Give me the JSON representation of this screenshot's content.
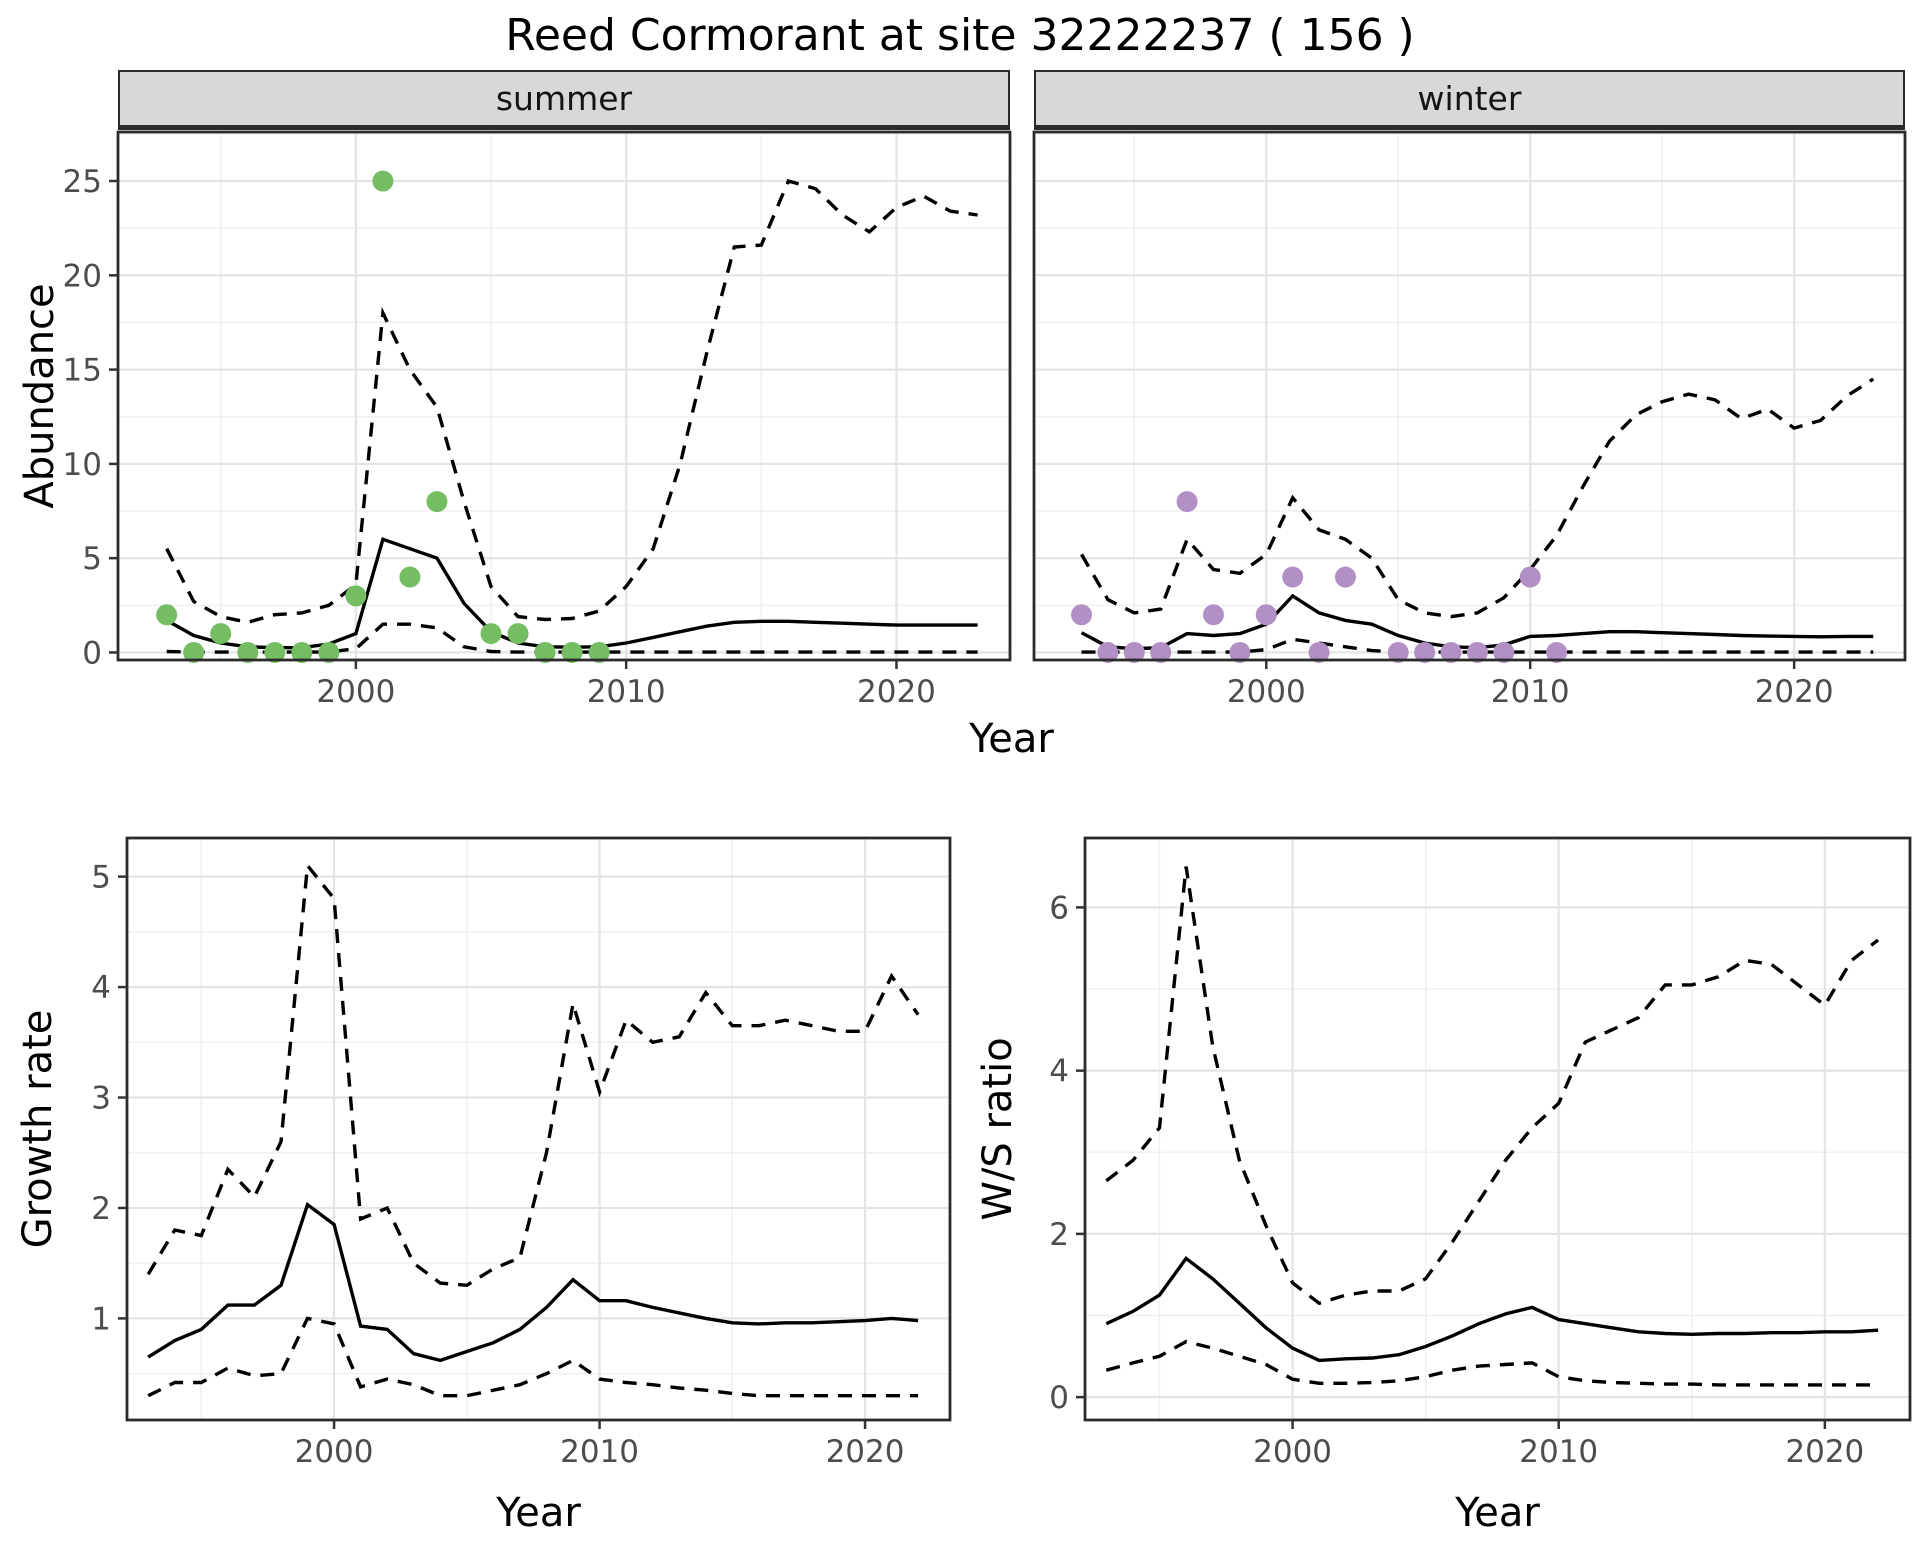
{
  "title": "Reed Cormorant at site 32222237 ( 156 )",
  "colors": {
    "summer_point": "#75bd62",
    "winter_point": "#b290c5",
    "line": "#000000",
    "grid_major": "#e4e4e4",
    "grid_minor": "#f0f0f0",
    "panel_border": "#2b2b2b",
    "strip_bg": "#d8d8d8",
    "tick_text": "#4d4d4d",
    "background": "#ffffff"
  },
  "chart_data": [
    {
      "id": "abundance-summer",
      "type": "line",
      "facet_label": "summer",
      "xlabel": "Year",
      "ylabel": "Abundance",
      "xlim": [
        1991.2,
        2024.2
      ],
      "ylim": [
        -0.4,
        27.6
      ],
      "xticks": [
        2000,
        2010,
        2020
      ],
      "yticks": [
        0,
        5,
        10,
        15,
        20,
        25
      ],
      "grid": true,
      "legend": "none",
      "x": [
        1993,
        1994,
        1995,
        1996,
        1997,
        1998,
        1999,
        2000,
        2001,
        2002,
        2003,
        2004,
        2005,
        2006,
        2007,
        2008,
        2009,
        2010,
        2011,
        2012,
        2013,
        2014,
        2015,
        2016,
        2017,
        2018,
        2019,
        2020,
        2021,
        2022,
        2023
      ],
      "series": [
        {
          "name": "median",
          "style": "solid",
          "values": [
            1.7,
            0.9,
            0.5,
            0.3,
            0.25,
            0.25,
            0.45,
            1.0,
            6.0,
            5.5,
            5.0,
            2.6,
            1.1,
            0.5,
            0.3,
            0.28,
            0.3,
            0.5,
            0.8,
            1.1,
            1.4,
            1.6,
            1.65,
            1.65,
            1.6,
            1.55,
            1.5,
            1.45,
            1.45,
            1.45,
            1.45
          ]
        },
        {
          "name": "ci_upper",
          "style": "dashed",
          "values": [
            5.5,
            2.7,
            1.9,
            1.6,
            2.0,
            2.1,
            2.5,
            3.6,
            18.0,
            15.0,
            13.0,
            8.0,
            3.5,
            1.9,
            1.75,
            1.8,
            2.2,
            3.5,
            5.5,
            10.0,
            16.0,
            21.5,
            21.6,
            25.0,
            24.6,
            23.2,
            22.3,
            23.6,
            24.2,
            23.4,
            23.2
          ]
        },
        {
          "name": "ci_lower",
          "style": "dashed",
          "values": [
            0.05,
            0.02,
            0.02,
            0.02,
            0.02,
            0.02,
            0.02,
            0.2,
            1.5,
            1.5,
            1.3,
            0.3,
            0.05,
            0.02,
            0.02,
            0.02,
            0.02,
            0.02,
            0.02,
            0.02,
            0.02,
            0.02,
            0.02,
            0.02,
            0.02,
            0.02,
            0.02,
            0.02,
            0.02,
            0.02,
            0.02
          ]
        }
      ],
      "points": {
        "name": "observed summer counts",
        "color_key": "summer_point",
        "x": [
          1993,
          1994,
          1995,
          1996,
          1997,
          1998,
          1999,
          2000,
          2001,
          2002,
          2003,
          2005,
          2006,
          2007,
          2008,
          2009
        ],
        "values": [
          2,
          0,
          1,
          0,
          0,
          0,
          0,
          3,
          25,
          4,
          8,
          1,
          1,
          0,
          0,
          0
        ]
      }
    },
    {
      "id": "abundance-winter",
      "type": "line",
      "facet_label": "winter",
      "xlabel": "Year",
      "ylabel": "Abundance",
      "xlim": [
        1991.2,
        2024.2
      ],
      "ylim": [
        -0.4,
        27.6
      ],
      "xticks": [
        2000,
        2010,
        2020
      ],
      "yticks": [
        0,
        5,
        10,
        15,
        20,
        25
      ],
      "grid": true,
      "legend": "none",
      "x": [
        1993,
        1994,
        1995,
        1996,
        1997,
        1998,
        1999,
        2000,
        2001,
        2002,
        2003,
        2004,
        2005,
        2006,
        2007,
        2008,
        2009,
        2010,
        2011,
        2012,
        2013,
        2014,
        2015,
        2016,
        2017,
        2018,
        2019,
        2020,
        2021,
        2022,
        2023
      ],
      "series": [
        {
          "name": "median",
          "style": "solid",
          "values": [
            1.05,
            0.3,
            0.2,
            0.25,
            1.0,
            0.9,
            1.0,
            1.5,
            3.0,
            2.1,
            1.7,
            1.5,
            0.9,
            0.5,
            0.3,
            0.25,
            0.4,
            0.85,
            0.9,
            1.0,
            1.1,
            1.1,
            1.05,
            1.0,
            0.95,
            0.9,
            0.87,
            0.85,
            0.83,
            0.85,
            0.85
          ]
        },
        {
          "name": "ci_upper",
          "style": "dashed",
          "values": [
            5.2,
            2.8,
            2.1,
            2.3,
            6.0,
            4.4,
            4.2,
            5.2,
            8.2,
            6.5,
            6.0,
            5.0,
            2.8,
            2.1,
            1.9,
            2.1,
            2.9,
            4.4,
            6.2,
            8.8,
            11.2,
            12.6,
            13.3,
            13.7,
            13.4,
            12.4,
            12.9,
            11.9,
            12.3,
            13.6,
            14.5
          ]
        },
        {
          "name": "ci_lower",
          "style": "dashed",
          "values": [
            0.02,
            0.02,
            0.02,
            0.02,
            0.02,
            0.02,
            0.02,
            0.15,
            0.7,
            0.5,
            0.3,
            0.1,
            0.02,
            0.02,
            0.02,
            0.02,
            0.02,
            0.02,
            0.02,
            0.02,
            0.02,
            0.02,
            0.02,
            0.02,
            0.02,
            0.02,
            0.02,
            0.02,
            0.02,
            0.02,
            0.02
          ]
        }
      ],
      "points": {
        "name": "observed winter counts",
        "color_key": "winter_point",
        "x": [
          1993,
          1994,
          1995,
          1996,
          1997,
          1998,
          1999,
          2000,
          2001,
          2002,
          2003,
          2005,
          2006,
          2007,
          2008,
          2009,
          2010,
          2011
        ],
        "values": [
          2,
          0,
          0,
          0,
          8,
          2,
          0,
          2,
          4,
          0,
          4,
          0,
          0,
          0,
          0,
          0,
          4,
          0
        ]
      }
    },
    {
      "id": "growth-rate",
      "type": "line",
      "facet_label": "",
      "xlabel": "Year",
      "ylabel": "Growth rate",
      "xlim": [
        1992.2,
        2023.2
      ],
      "ylim": [
        0.08,
        5.35
      ],
      "xticks": [
        2000,
        2010,
        2020
      ],
      "yticks": [
        1,
        2,
        3,
        4,
        5
      ],
      "grid": true,
      "legend": "none",
      "x": [
        1993,
        1994,
        1995,
        1996,
        1997,
        1998,
        1999,
        2000,
        2001,
        2002,
        2003,
        2004,
        2005,
        2006,
        2007,
        2008,
        2009,
        2010,
        2011,
        2012,
        2013,
        2014,
        2015,
        2016,
        2017,
        2018,
        2019,
        2020,
        2021,
        2022
      ],
      "series": [
        {
          "name": "median",
          "style": "solid",
          "values": [
            0.65,
            0.8,
            0.9,
            1.12,
            1.12,
            1.3,
            2.03,
            1.85,
            0.93,
            0.9,
            0.68,
            0.62,
            0.7,
            0.78,
            0.9,
            1.1,
            1.35,
            1.16,
            1.16,
            1.1,
            1.05,
            1.0,
            0.96,
            0.95,
            0.96,
            0.96,
            0.97,
            0.98,
            1.0,
            0.98
          ]
        },
        {
          "name": "ci_upper",
          "style": "dashed",
          "values": [
            1.4,
            1.8,
            1.75,
            2.35,
            2.1,
            2.6,
            5.1,
            4.8,
            1.9,
            2.0,
            1.5,
            1.32,
            1.3,
            1.45,
            1.55,
            2.5,
            3.85,
            3.05,
            3.7,
            3.5,
            3.55,
            3.95,
            3.65,
            3.65,
            3.7,
            3.65,
            3.6,
            3.6,
            4.1,
            3.75
          ]
        },
        {
          "name": "ci_lower",
          "style": "dashed",
          "values": [
            0.3,
            0.42,
            0.42,
            0.55,
            0.48,
            0.5,
            1.0,
            0.95,
            0.38,
            0.45,
            0.4,
            0.3,
            0.3,
            0.35,
            0.4,
            0.5,
            0.62,
            0.45,
            0.42,
            0.4,
            0.37,
            0.35,
            0.32,
            0.3,
            0.3,
            0.3,
            0.3,
            0.3,
            0.3,
            0.3
          ]
        }
      ]
    },
    {
      "id": "ws-ratio",
      "type": "line",
      "facet_label": "",
      "xlabel": "Year",
      "ylabel": "W/S ratio",
      "xlim": [
        1992.2,
        2023.2
      ],
      "ylim": [
        -0.28,
        6.85
      ],
      "xticks": [
        2000,
        2010,
        2020
      ],
      "yticks": [
        0,
        2,
        4,
        6
      ],
      "grid": true,
      "legend": "none",
      "x": [
        1993,
        1994,
        1995,
        1996,
        1997,
        1998,
        1999,
        2000,
        2001,
        2002,
        2003,
        2004,
        2005,
        2006,
        2007,
        2008,
        2009,
        2010,
        2011,
        2012,
        2013,
        2014,
        2015,
        2016,
        2017,
        2018,
        2019,
        2020,
        2021,
        2022
      ],
      "series": [
        {
          "name": "median",
          "style": "solid",
          "values": [
            0.9,
            1.05,
            1.25,
            1.7,
            1.45,
            1.15,
            0.85,
            0.6,
            0.45,
            0.47,
            0.48,
            0.52,
            0.62,
            0.75,
            0.9,
            1.02,
            1.1,
            0.95,
            0.9,
            0.85,
            0.8,
            0.78,
            0.77,
            0.78,
            0.78,
            0.79,
            0.79,
            0.8,
            0.8,
            0.82
          ]
        },
        {
          "name": "ci_upper",
          "style": "dashed",
          "values": [
            2.65,
            2.9,
            3.3,
            6.5,
            4.3,
            2.9,
            2.1,
            1.4,
            1.15,
            1.25,
            1.3,
            1.3,
            1.45,
            1.9,
            2.4,
            2.9,
            3.3,
            3.6,
            4.35,
            4.5,
            4.65,
            5.05,
            5.05,
            5.15,
            5.35,
            5.3,
            5.05,
            4.8,
            5.35,
            5.6
          ]
        },
        {
          "name": "ci_lower",
          "style": "dashed",
          "values": [
            0.33,
            0.42,
            0.5,
            0.68,
            0.6,
            0.5,
            0.4,
            0.22,
            0.17,
            0.17,
            0.18,
            0.2,
            0.25,
            0.33,
            0.38,
            0.4,
            0.42,
            0.25,
            0.2,
            0.18,
            0.17,
            0.16,
            0.16,
            0.15,
            0.15,
            0.15,
            0.15,
            0.15,
            0.15,
            0.15
          ]
        }
      ]
    }
  ]
}
